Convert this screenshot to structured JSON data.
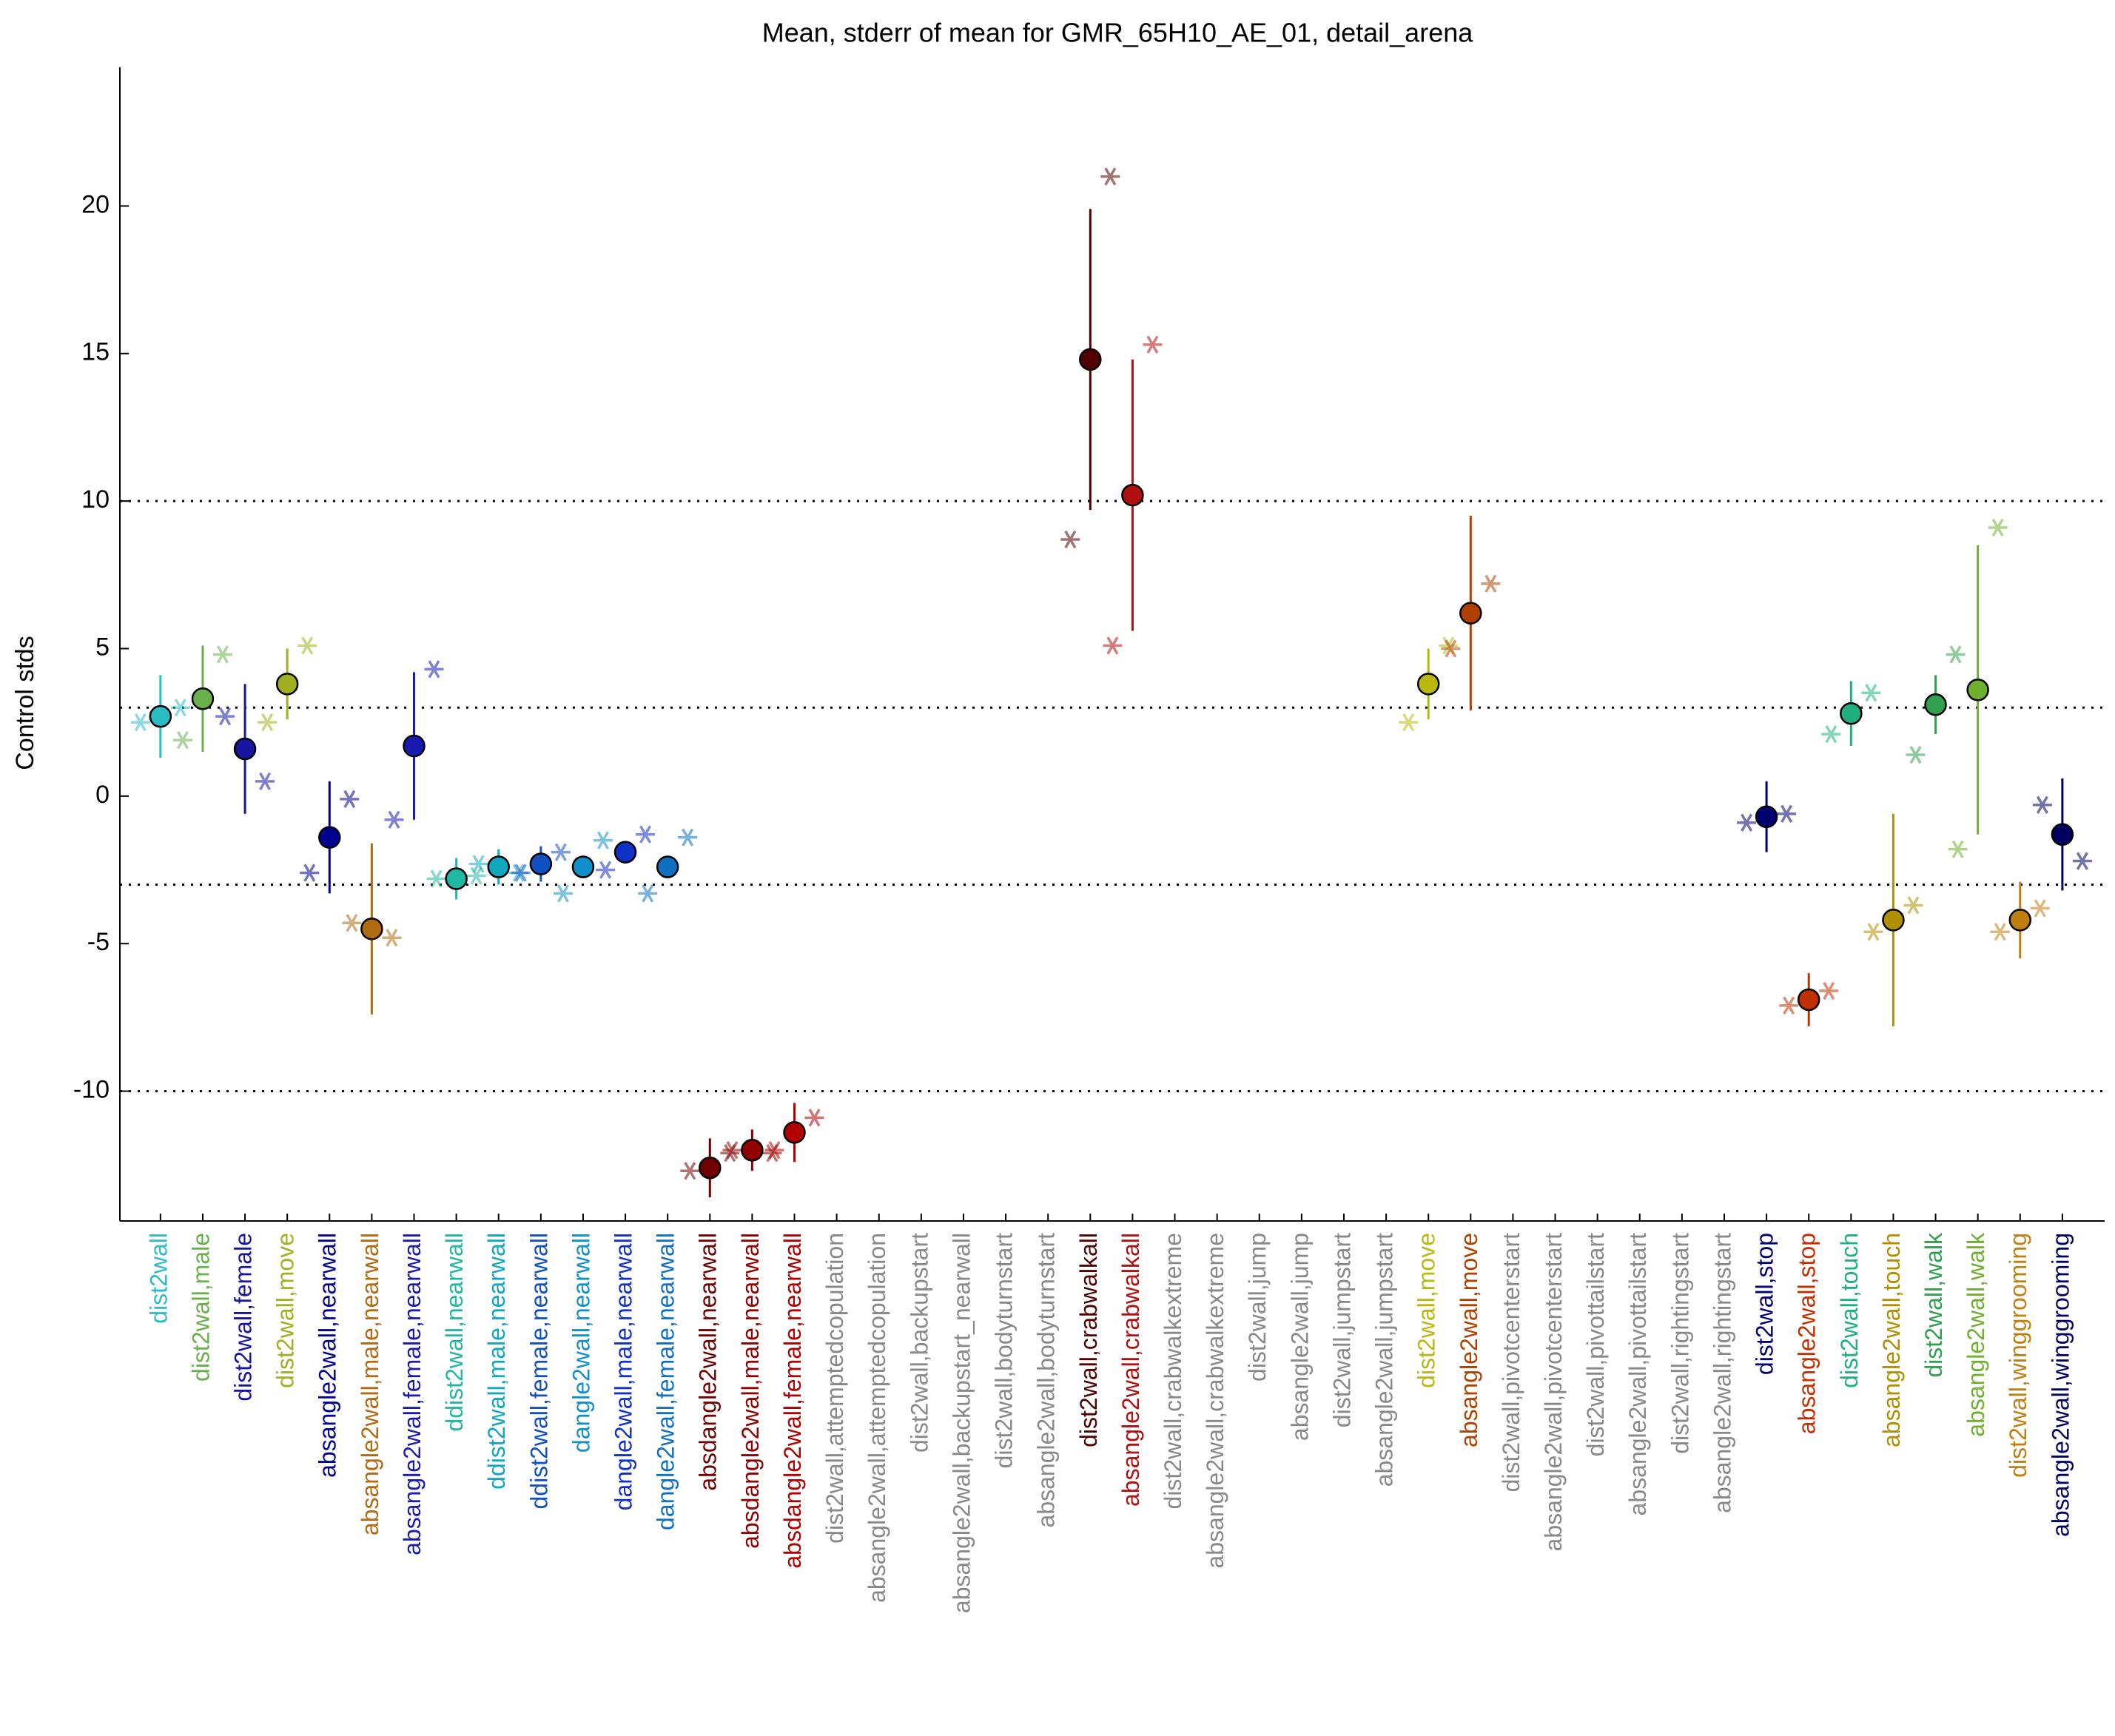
{
  "chart_data": {
    "type": "errorbar",
    "title": "Mean, stderr of mean for GMR_65H10_AE_01, detail_arena",
    "y_label": "Control stds",
    "categories": [
      "dist2wall",
      "dist2wall,male",
      "dist2wall,female",
      "dist2wall,move",
      "absangle2wall,nearwall",
      "absangle2wall,male,nearwall",
      "absangle2wall,female,nearwall",
      "ddist2wall,nearwall",
      "ddist2wall,male,nearwall",
      "ddist2wall,female,nearwall",
      "dangle2wall,nearwall",
      "dangle2wall,male,nearwall",
      "dangle2wall,female,nearwall",
      "absdangle2wall,nearwall",
      "absdangle2wall,male,nearwall",
      "absdangle2wall,female,nearwall",
      "dist2wall,attemptedcopulation",
      "absangle2wall,attemptedcopulation",
      "dist2wall,backupstart",
      "absangle2wall,backupstart_nearwall",
      "dist2wall,bodyturnstart",
      "absangle2wall,bodyturnstart",
      "dist2wall,crabwalkall",
      "absangle2wall,crabwalkall",
      "dist2wall,crabwalkextreme",
      "absangle2wall,crabwalkextreme",
      "dist2wall,jump",
      "absangle2wall,jump",
      "dist2wall,jumpstart",
      "absangle2wall,jumpstart",
      "dist2wall,move",
      "absangle2wall,move",
      "dist2wall,pivotcenterstart",
      "absangle2wall,pivotcenterstart",
      "dist2wall,pivottailstart",
      "absangle2wall,pivottailstart",
      "dist2wall,rightingstart",
      "absangle2wall,rightingstart",
      "dist2wall,stop",
      "absangle2wall,stop",
      "dist2wall,touch",
      "absangle2wall,touch",
      "dist2wall,walk",
      "absangle2wall,walk",
      "dist2wall,winggrooming",
      "absangle2wall,winggrooming"
    ],
    "colors": [
      "#2bbcc4",
      "#6ab04c",
      "#1515a0",
      "#a0b020",
      "#000090",
      "#b06a10",
      "#1a1ab0",
      "#20b8a0",
      "#10a8c0",
      "#1050c0",
      "#1090c8",
      "#1030c8",
      "#1070c0",
      "#700000",
      "#900000",
      "#b00000",
      "#888888",
      "#888888",
      "#888888",
      "#888888",
      "#888888",
      "#888888",
      "#500000",
      "#b01010",
      "#888888",
      "#888888",
      "#888888",
      "#888888",
      "#888888",
      "#888888",
      "#b8b810",
      "#b04000",
      "#888888",
      "#888888",
      "#888888",
      "#888888",
      "#888888",
      "#888888",
      "#000070",
      "#c03000",
      "#20b080",
      "#b09000",
      "#30a050",
      "#70b030",
      "#c08010",
      "#000060"
    ],
    "values": [
      2.7,
      3.3,
      1.6,
      3.8,
      -1.4,
      -4.5,
      1.7,
      -2.8,
      -2.4,
      -2.3,
      -2.4,
      -1.9,
      -2.4,
      -12.6,
      -12.0,
      -11.4,
      null,
      null,
      null,
      null,
      null,
      null,
      14.8,
      10.2,
      null,
      null,
      null,
      null,
      null,
      null,
      3.8,
      6.2,
      null,
      null,
      null,
      null,
      null,
      null,
      -0.7,
      -6.9,
      2.8,
      -4.2,
      3.1,
      3.6,
      -4.2,
      -1.3
    ],
    "errors": [
      1.4,
      1.8,
      2.2,
      1.2,
      1.9,
      2.9,
      2.5,
      0.7,
      0.6,
      0.6,
      0.3,
      0.2,
      0.3,
      1.0,
      0.7,
      1.0,
      null,
      null,
      null,
      null,
      null,
      null,
      5.1,
      4.6,
      null,
      null,
      null,
      null,
      null,
      null,
      1.2,
      3.3,
      null,
      null,
      null,
      null,
      null,
      null,
      1.2,
      0.9,
      1.1,
      3.6,
      1.0,
      4.9,
      1.3,
      1.9
    ],
    "points_left": [
      2.5,
      1.9,
      2.7,
      2.5,
      -2.6,
      -4.3,
      -0.8,
      -2.8,
      -2.3,
      -2.6,
      -3.3,
      -2.5,
      -3.3,
      -12.7,
      -12.0,
      -12.0,
      null,
      null,
      null,
      null,
      null,
      null,
      8.7,
      5.1,
      null,
      null,
      null,
      null,
      null,
      null,
      2.5,
      5.0,
      null,
      null,
      null,
      null,
      null,
      null,
      -0.9,
      -7.1,
      2.1,
      -4.6,
      1.4,
      -1.8,
      -4.6,
      -0.3
    ],
    "points_right": [
      3.0,
      4.8,
      0.5,
      5.1,
      -0.1,
      -4.8,
      4.3,
      -2.7,
      -2.6,
      -1.9,
      -1.5,
      -1.3,
      -1.4,
      -12.1,
      -12.1,
      -10.9,
      null,
      null,
      null,
      null,
      null,
      null,
      21.0,
      15.3,
      null,
      null,
      null,
      null,
      null,
      null,
      5.1,
      7.2,
      null,
      null,
      null,
      null,
      null,
      null,
      -0.6,
      -6.6,
      3.5,
      -3.7,
      4.8,
      9.1,
      -3.8,
      -2.2
    ],
    "xlim": [
      -0.96,
      46.0
    ],
    "ylim": [
      -14.4,
      24.7
    ],
    "yticks": [
      -10,
      -5,
      0,
      5,
      10,
      15,
      20
    ],
    "reference_lines": [
      -10,
      -3,
      3,
      10
    ]
  }
}
